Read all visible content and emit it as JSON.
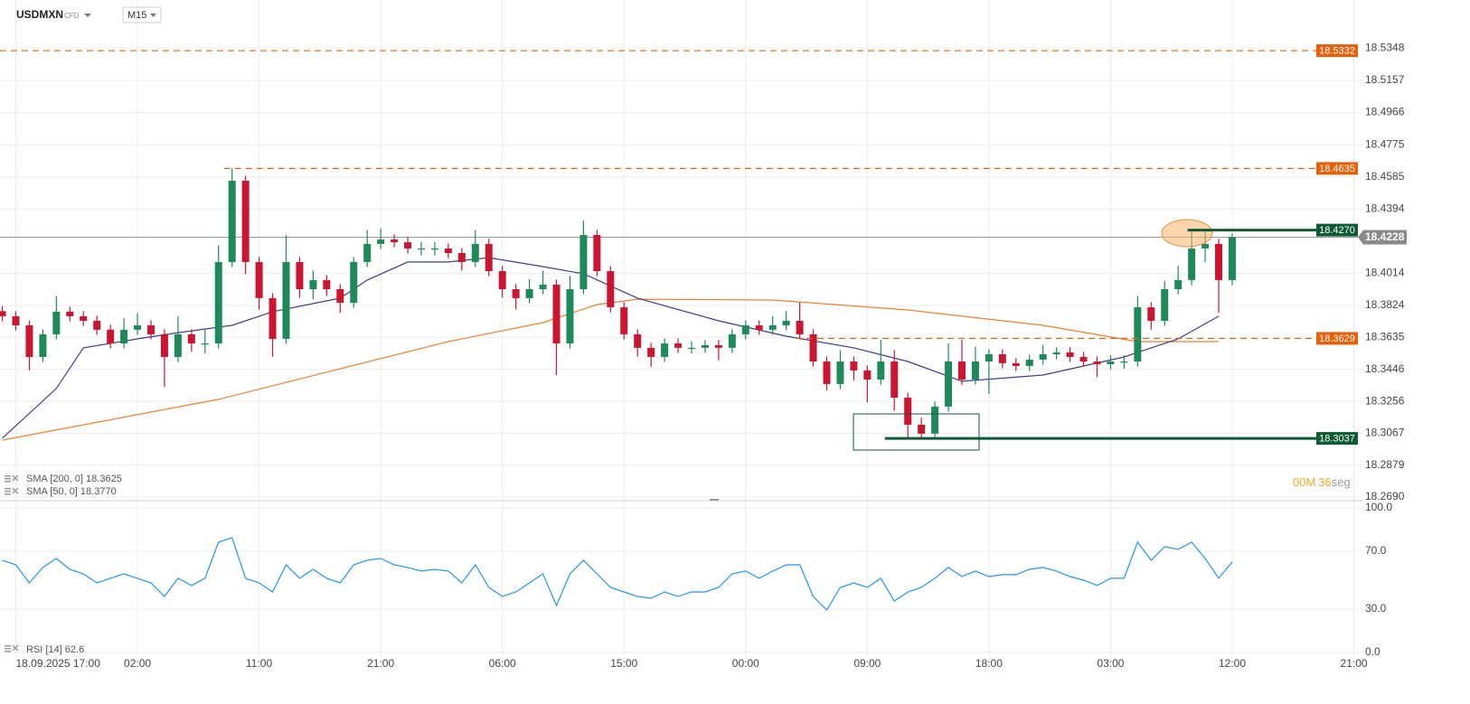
{
  "chart_data": [
    {
      "type": "candlestick",
      "symbol": "USDMXN",
      "instrument_type": "CFD",
      "timeframe": "M15",
      "up_color": "#1e8a5a",
      "down_color": "#cc1530",
      "grid": true,
      "xlim": [
        -1.17,
        99.7
      ],
      "xticks": [
        {
          "value": 0,
          "label": "18.09.2025 17:00"
        },
        {
          "value": 9,
          "label": "02:00"
        },
        {
          "value": 18,
          "label": "11:00"
        },
        {
          "value": 27,
          "label": "21:00"
        },
        {
          "value": 36,
          "label": "06:00"
        },
        {
          "value": 45,
          "label": "15:00"
        },
        {
          "value": 54,
          "label": "00:00"
        },
        {
          "value": 63,
          "label": "09:00"
        },
        {
          "value": 72,
          "label": "18:00"
        },
        {
          "value": 81,
          "label": "03:00"
        },
        {
          "value": 90,
          "label": "12:00"
        },
        {
          "value": 99,
          "label": "21:00"
        }
      ],
      "ylim": [
        18.2663,
        18.5418
      ],
      "yticks": [
        {
          "value": 18.269,
          "label": "18.2690"
        },
        18.2879,
        18.3067,
        18.3256,
        18.3446,
        18.3635,
        18.3824,
        18.4014,
        18.4394,
        18.4585,
        18.4775,
        18.4966,
        18.5157,
        18.5348
      ],
      "x": [
        -1,
        0,
        1,
        2,
        3,
        4,
        5,
        6,
        7,
        8,
        9,
        10,
        11,
        12,
        13,
        14,
        15,
        16,
        17,
        18,
        19,
        20,
        21,
        22,
        23,
        24,
        25,
        26,
        27,
        28,
        29,
        30,
        31,
        32,
        33,
        34,
        35,
        36,
        37,
        38,
        39,
        40,
        41,
        42,
        43,
        44,
        45,
        46,
        47,
        48,
        49,
        50,
        51,
        52,
        53,
        54,
        55,
        56,
        57,
        58,
        59,
        60,
        61,
        62,
        63,
        64,
        65,
        66,
        67,
        68,
        69,
        70,
        71,
        72,
        73,
        74,
        75,
        76,
        77,
        78,
        79,
        80,
        81,
        82,
        83,
        84,
        85,
        86,
        87,
        88,
        89,
        90
      ],
      "open": [
        18.379,
        18.376,
        18.3706,
        18.3519,
        18.3653,
        18.3787,
        18.376,
        18.3733,
        18.368,
        18.3599,
        18.368,
        18.3706,
        18.3653,
        18.3519,
        18.3653,
        18.3599,
        18.3599,
        18.4081,
        18.4562,
        18.4081,
        18.3867,
        18.3626,
        18.4081,
        18.392,
        18.3974,
        18.392,
        18.384,
        18.4081,
        18.4188,
        18.4214,
        18.4198,
        18.4161,
        18.4161,
        18.4161,
        18.4134,
        18.4081,
        18.4188,
        18.4027,
        18.392,
        18.3867,
        18.392,
        18.3947,
        18.3599,
        18.392,
        18.4241,
        18.4027,
        18.3813,
        18.3653,
        18.3573,
        18.3519,
        18.3599,
        18.3573,
        18.3573,
        18.3589,
        18.3573,
        18.3653,
        18.3706,
        18.368,
        18.3706,
        18.3733,
        18.3653,
        18.3492,
        18.3359,
        18.3492,
        18.3439,
        18.3385,
        18.3492,
        18.3278,
        18.3118,
        18.3065,
        18.3225,
        18.3492,
        18.3385,
        18.3492,
        18.3535,
        18.3482,
        18.3466,
        18.3503,
        18.3535,
        18.3546,
        18.3519,
        18.3492,
        18.3476,
        18.3492,
        18.3492,
        18.3813,
        18.3733,
        18.392,
        18.3974,
        18.4161,
        18.4188,
        18.3974
      ],
      "high": [
        18.382,
        18.379,
        18.3736,
        18.3683,
        18.388,
        18.3817,
        18.379,
        18.3763,
        18.371,
        18.375,
        18.378,
        18.3736,
        18.3683,
        18.376,
        18.3683,
        18.368,
        18.418,
        18.4635,
        18.4592,
        18.4111,
        18.3897,
        18.424,
        18.4111,
        18.403,
        18.4004,
        18.395,
        18.4111,
        18.427,
        18.428,
        18.4244,
        18.4228,
        18.42,
        18.42,
        18.4191,
        18.4164,
        18.427,
        18.4218,
        18.4057,
        18.395,
        18.398,
        18.403,
        18.3977,
        18.4,
        18.4327,
        18.4271,
        18.4057,
        18.3843,
        18.3683,
        18.3603,
        18.3629,
        18.3629,
        18.361,
        18.3619,
        18.3619,
        18.3683,
        18.3736,
        18.3736,
        18.376,
        18.379,
        18.384,
        18.3683,
        18.3522,
        18.356,
        18.3522,
        18.3469,
        18.362,
        18.356,
        18.3308,
        18.316,
        18.3255,
        18.36,
        18.362,
        18.358,
        18.3565,
        18.3565,
        18.3512,
        18.3533,
        18.359,
        18.3576,
        18.3576,
        18.3549,
        18.3522,
        18.353,
        18.353,
        18.388,
        18.3843,
        18.397,
        18.406,
        18.427,
        18.427,
        18.4218,
        18.425
      ],
      "low": [
        18.373,
        18.3676,
        18.344,
        18.3489,
        18.3623,
        18.373,
        18.3703,
        18.365,
        18.3569,
        18.3569,
        18.365,
        18.3623,
        18.334,
        18.3489,
        18.355,
        18.354,
        18.3569,
        18.4051,
        18.401,
        18.38,
        18.352,
        18.3596,
        18.387,
        18.386,
        18.388,
        18.378,
        18.381,
        18.4051,
        18.4158,
        18.4168,
        18.4131,
        18.412,
        18.412,
        18.4104,
        18.403,
        18.4051,
        18.3997,
        18.387,
        18.38,
        18.3837,
        18.389,
        18.3412,
        18.3569,
        18.389,
        18.3997,
        18.3783,
        18.3623,
        18.352,
        18.346,
        18.3489,
        18.3543,
        18.354,
        18.3543,
        18.35,
        18.3543,
        18.3623,
        18.365,
        18.365,
        18.3676,
        18.3623,
        18.3462,
        18.332,
        18.3329,
        18.338,
        18.325,
        18.3355,
        18.32,
        18.3037,
        18.304,
        18.3045,
        18.3195,
        18.3355,
        18.3355,
        18.33,
        18.3452,
        18.3436,
        18.3436,
        18.3473,
        18.3505,
        18.3489,
        18.3462,
        18.34,
        18.3446,
        18.345,
        18.3462,
        18.368,
        18.3703,
        18.389,
        18.3944,
        18.408,
        18.378,
        18.3944
      ],
      "close": [
        18.376,
        18.3706,
        18.3519,
        18.3653,
        18.3787,
        18.376,
        18.3733,
        18.368,
        18.3599,
        18.368,
        18.3706,
        18.3653,
        18.3519,
        18.3653,
        18.3599,
        18.3599,
        18.4081,
        18.4562,
        18.4081,
        18.3867,
        18.3626,
        18.4081,
        18.392,
        18.3974,
        18.392,
        18.384,
        18.4081,
        18.4188,
        18.4214,
        18.4198,
        18.4161,
        18.4161,
        18.4161,
        18.4134,
        18.4081,
        18.4188,
        18.4027,
        18.392,
        18.3867,
        18.392,
        18.3947,
        18.3599,
        18.392,
        18.4241,
        18.4027,
        18.3813,
        18.3653,
        18.3573,
        18.3519,
        18.3599,
        18.3573,
        18.3573,
        18.3589,
        18.3573,
        18.3653,
        18.3706,
        18.368,
        18.3706,
        18.3733,
        18.3653,
        18.3492,
        18.3359,
        18.3492,
        18.3439,
        18.3385,
        18.3492,
        18.3278,
        18.3118,
        18.3065,
        18.3225,
        18.3492,
        18.3385,
        18.3492,
        18.3535,
        18.3482,
        18.3466,
        18.3503,
        18.3535,
        18.3546,
        18.3519,
        18.3492,
        18.3476,
        18.3492,
        18.3492,
        18.3813,
        18.3733,
        18.392,
        18.3974,
        18.4161,
        18.4188,
        18.3974,
        18.4228
      ],
      "series": [
        {
          "name": "SMA [200, 0] 18.3625",
          "color": "#f07f2d",
          "x": [
            -1,
            15,
            32,
            39,
            43,
            46,
            56,
            66,
            76,
            83,
            89
          ],
          "values": [
            18.3027,
            18.3268,
            18.361,
            18.3722,
            18.3829,
            18.3861,
            18.3856,
            18.3797,
            18.3706,
            18.361,
            18.361
          ]
        },
        {
          "name": "SMA [50, 0] 18.3770",
          "color": "#3d3d8f",
          "x": [
            -1,
            3,
            5,
            9,
            12,
            16,
            19,
            24,
            26,
            29,
            32,
            35,
            39,
            42,
            46,
            52,
            57,
            62,
            66,
            70,
            76,
            82,
            86,
            89
          ],
          "values": [
            18.3038,
            18.3332,
            18.3573,
            18.3626,
            18.3663,
            18.3706,
            18.3787,
            18.3867,
            18.3974,
            18.4081,
            18.4081,
            18.4107,
            18.4054,
            18.4011,
            18.3867,
            18.3733,
            18.3642,
            18.3573,
            18.3492,
            18.3375,
            18.3412,
            18.3519,
            18.3626,
            18.376
          ]
        }
      ],
      "levels": [
        {
          "value": 18.5332,
          "color": "#e8600a",
          "style": "dashed",
          "x_start": -1.17
        },
        {
          "value": 18.4635,
          "color": "#e8600a",
          "style": "dashed",
          "x_start": 15.4
        },
        {
          "value": 18.3629,
          "color": "#e8600a",
          "style": "dashed",
          "x_start": 57.7
        },
        {
          "value": 18.427,
          "label": "18.4270",
          "color": "#0d5a35",
          "style": "solid",
          "x_start": 86.7
        },
        {
          "value": 18.3037,
          "color": "#0d5a35",
          "style": "solid",
          "x_start": 64.3
        }
      ],
      "last": {
        "value": 18.4228,
        "color": "#8a8a8a"
      },
      "countdown": {
        "minutes": "00M",
        "seconds": "36",
        "unit": "seg"
      }
    },
    {
      "type": "line",
      "xlim": [
        -1.17,
        99.7
      ],
      "ylim": [
        0,
        100
      ],
      "yticks": [
        {
          "value": 0,
          "label": "0.0"
        },
        {
          "value": 30,
          "label": "30.0"
        },
        {
          "value": 70,
          "label": "70.0"
        },
        {
          "value": 100,
          "label": "100.0"
        }
      ],
      "series": [
        {
          "name": "RSI [14] 62.6",
          "color": "#2196f3",
          "x": [
            -1,
            0,
            1,
            2,
            3,
            4,
            5,
            6,
            7,
            8,
            9,
            10,
            11,
            12,
            13,
            14,
            15,
            16,
            17,
            18,
            19,
            20,
            21,
            22,
            23,
            24,
            25,
            26,
            27,
            28,
            29,
            30,
            31,
            32,
            33,
            34,
            35,
            36,
            37,
            38,
            39,
            40,
            41,
            42,
            43,
            44,
            45,
            46,
            47,
            48,
            49,
            50,
            51,
            52,
            53,
            54,
            55,
            56,
            57,
            58,
            59,
            60,
            61,
            62,
            63,
            64,
            65,
            66,
            67,
            68,
            69,
            70,
            71,
            72,
            73,
            74,
            75,
            76,
            77,
            78,
            79,
            80,
            81,
            82,
            83,
            84,
            85,
            86,
            87,
            88,
            89,
            90
          ],
          "values": [
            63.8,
            60.6,
            48.1,
            58.8,
            65,
            57.5,
            54.4,
            48.1,
            51.3,
            54.4,
            51.3,
            48.1,
            38.8,
            51.3,
            46.3,
            51.3,
            76.3,
            79.4,
            51.3,
            48.1,
            41.9,
            60.6,
            51.3,
            57.5,
            51.3,
            48.1,
            60.6,
            63.8,
            65,
            60.6,
            58.8,
            56.3,
            57.5,
            56.3,
            48.1,
            60.6,
            45,
            38.8,
            41.9,
            48.1,
            54.4,
            32.5,
            54.4,
            63.8,
            54.4,
            45,
            41.9,
            38.8,
            37.5,
            41.9,
            38.8,
            41.9,
            41.9,
            45,
            54.4,
            56.3,
            51.3,
            56.3,
            60.6,
            60.6,
            38.8,
            29.4,
            45,
            48.1,
            45,
            51.3,
            35.6,
            41.9,
            45,
            51.3,
            58.8,
            52.5,
            56.3,
            52.5,
            53.8,
            53.8,
            57.5,
            58.8,
            56.3,
            52.5,
            50,
            46.3,
            51.3,
            51.3,
            76.3,
            63.8,
            73.1,
            71.3,
            76.3,
            65,
            51.3,
            62.6
          ]
        }
      ]
    }
  ]
}
